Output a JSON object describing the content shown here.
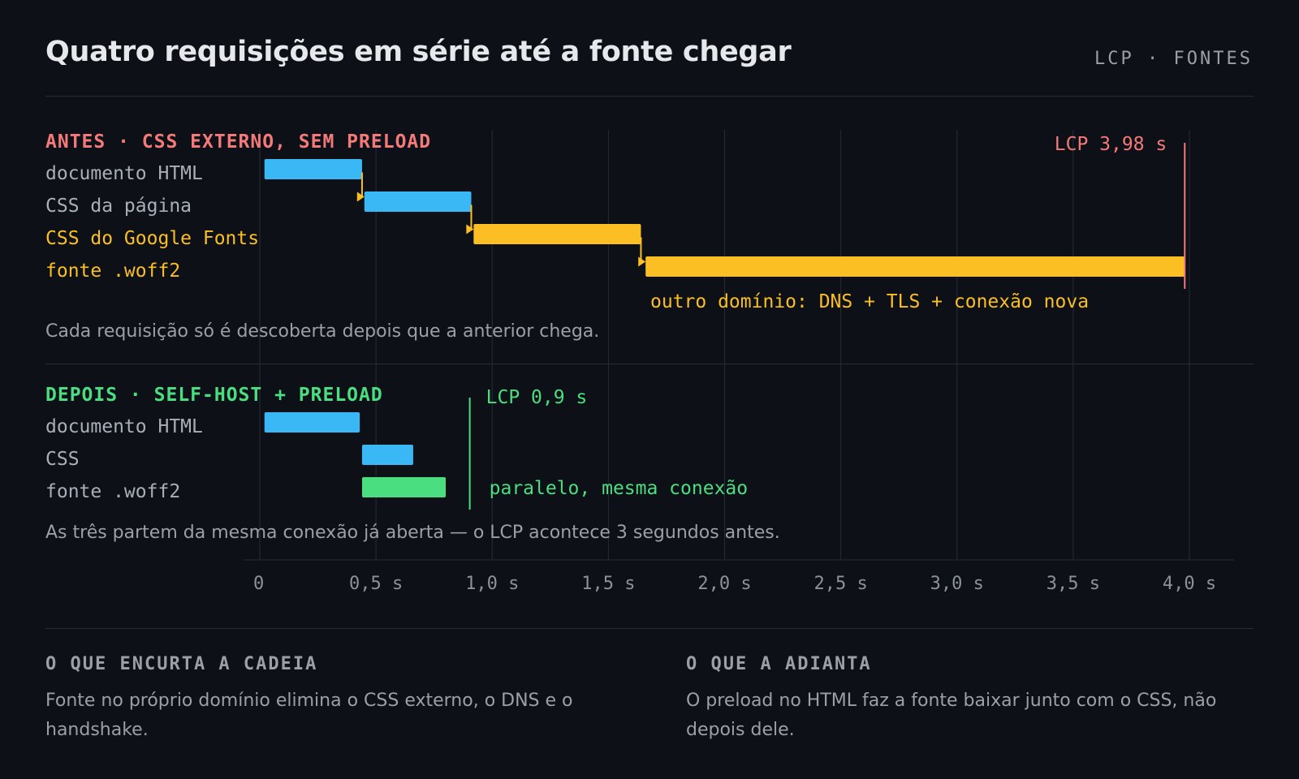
{
  "header": {
    "title": "Quatro requisições em série até a fonte chegar",
    "tag": "LCP · FONTES"
  },
  "colors": {
    "blue": "#3ab8f5",
    "yellow": "#fbbf24",
    "red": "#f47a7a",
    "green": "#4ade80",
    "grid": "#262c36"
  },
  "chart_data": {
    "type": "gantt",
    "x": {
      "min": 0,
      "max": 4.0,
      "ticks": [
        0,
        0.5,
        1.0,
        1.5,
        2.0,
        2.5,
        3.0,
        3.5,
        4.0
      ],
      "tick_labels": [
        "0",
        "0,5 s",
        "1,0 s",
        "1,5 s",
        "2,0 s",
        "2,5 s",
        "3,0 s",
        "3,5 s",
        "4,0 s"
      ]
    },
    "before": {
      "label": "ANTES · CSS EXTERNO, SEM PRELOAD",
      "lcp": {
        "value": 3.98,
        "label": "LCP 3,98 s"
      },
      "annotation": "outro domínio: DNS + TLS + conexão nova",
      "note": "Cada requisição só é descoberta depois que a anterior chega.",
      "rows": [
        {
          "label": "documento HTML",
          "start": 0.02,
          "end": 0.44,
          "color": "blue"
        },
        {
          "label": "CSS da página",
          "start": 0.45,
          "end": 0.91,
          "color": "blue"
        },
        {
          "label": "CSS do Google Fonts",
          "start": 0.92,
          "end": 1.64,
          "color": "yellow"
        },
        {
          "label": "fonte .woff2",
          "start": 1.66,
          "end": 3.98,
          "color": "yellow"
        }
      ]
    },
    "after": {
      "label": "DEPOIS · SELF-HOST + PRELOAD",
      "lcp": {
        "value": 0.9,
        "label": "LCP 0,9 s"
      },
      "annotation": "paralelo, mesma conexão",
      "note": "As três partem da mesma conexão já aberta — o LCP acontece 3 segundos antes.",
      "rows": [
        {
          "label": "documento HTML",
          "start": 0.02,
          "end": 0.43,
          "color": "blue"
        },
        {
          "label": "CSS",
          "start": 0.44,
          "end": 0.66,
          "color": "blue"
        },
        {
          "label": "fonte .woff2",
          "start": 0.44,
          "end": 0.8,
          "color": "green"
        }
      ]
    }
  },
  "footer": {
    "left": {
      "heading": "O QUE ENCURTA A CADEIA",
      "text": "Fonte no próprio domínio elimina o CSS externo, o DNS e o handshake."
    },
    "right": {
      "heading": "O QUE A ADIANTA",
      "text": "O preload no HTML faz a fonte baixar junto com o CSS, não depois dele."
    }
  }
}
